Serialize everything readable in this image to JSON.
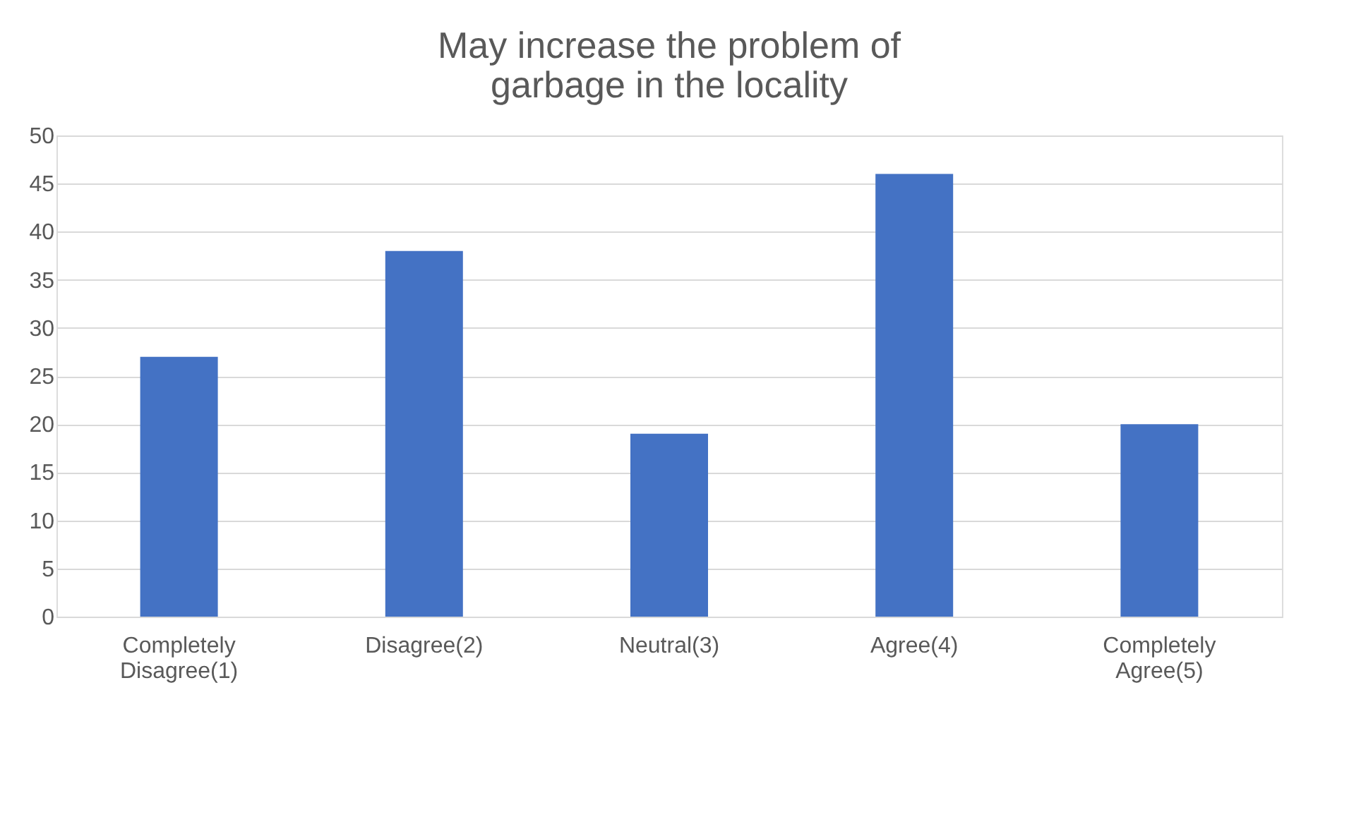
{
  "chart_data": {
    "type": "bar",
    "title": "May increase the problem of garbage in the locality",
    "categories": [
      "Completely Disagree(1)",
      "Disagree(2)",
      "Neutral(3)",
      "Agree(4)",
      "Completely Agree(5)"
    ],
    "values": [
      27,
      38,
      19,
      46,
      20
    ],
    "color": "#4472c4",
    "ylim": [
      0,
      50
    ],
    "yticks": [
      0,
      5,
      10,
      15,
      20,
      25,
      30,
      35,
      40,
      45,
      50
    ],
    "grid": "y"
  }
}
